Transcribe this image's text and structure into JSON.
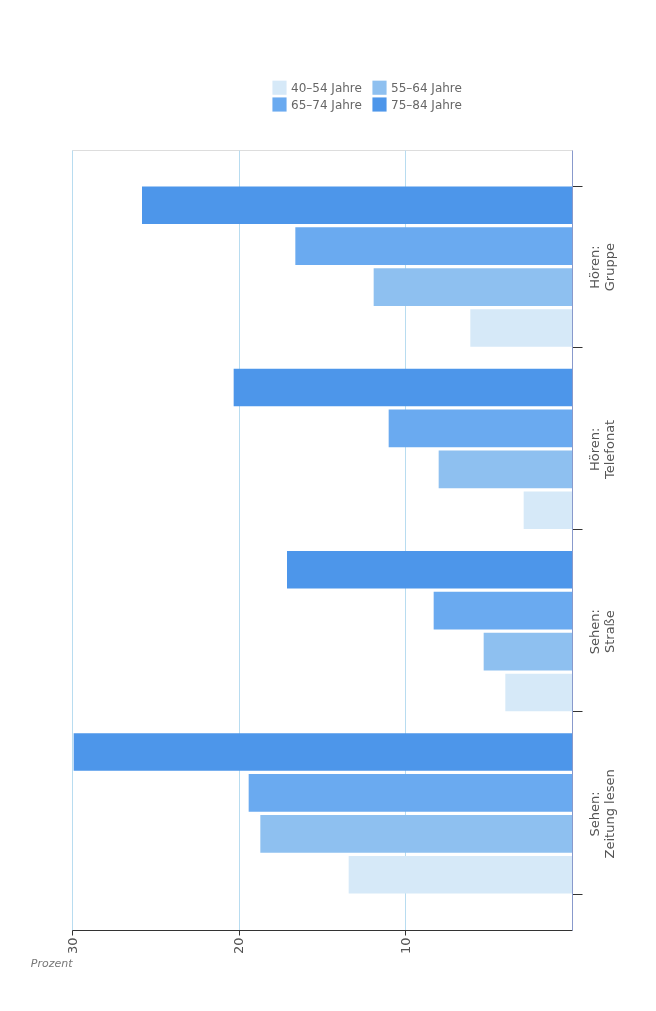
{
  "chart_data": {
    "type": "bar",
    "orientation": "horizontal",
    "xlabel": "Prozent",
    "categories": [
      "Hören: Gruppe",
      "Hören: Telefonat",
      "Sehen: Straße",
      "Sehen: Zeitung lesen"
    ],
    "series": [
      {
        "name": "40–54 Jahre",
        "color": "#d6e9f8",
        "values": [
          6.1,
          2.9,
          4.0,
          13.4
        ]
      },
      {
        "name": "55–64 Jahre",
        "color": "#8ec0f0",
        "values": [
          11.9,
          8.0,
          5.3,
          18.7
        ]
      },
      {
        "name": "65–74 Jahre",
        "color": "#6aaaf0",
        "values": [
          16.6,
          11.0,
          8.3,
          19.4
        ]
      },
      {
        "name": "75–84 Jahre",
        "color": "#4d96ea",
        "values": [
          25.8,
          20.3,
          17.1,
          29.9
        ]
      }
    ],
    "xlim": [
      30,
      0
    ],
    "xticks": [
      10,
      20,
      30
    ],
    "grid": "x",
    "legend": "top right"
  }
}
